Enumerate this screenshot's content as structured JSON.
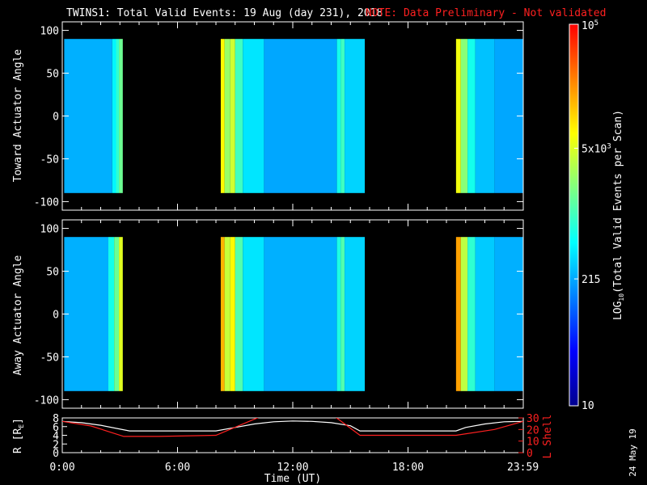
{
  "figure": {
    "title": "TWINS1: Total Valid Events: 19 Aug (day 231), 2018",
    "note": "NOTE: Data Preliminary - Not validated",
    "stamp": "24 May 19"
  },
  "colors": {
    "background": "#000000",
    "note_red": "#ff2020",
    "axis": "#ffffff",
    "colormap": [
      "#00008f",
      "#0000ff",
      "#0080ff",
      "#00ffff",
      "#80ff80",
      "#ffff00",
      "#ff8000",
      "#ff0000"
    ]
  },
  "chart_data": [
    {
      "type": "heatmap",
      "name": "toward",
      "ylabel": "Toward Actuator Angle",
      "xlim": [
        0,
        24
      ],
      "ylim": [
        -110,
        110
      ],
      "yticks": [
        -100,
        -50,
        0,
        50,
        100
      ],
      "data_range_deg": [
        -90,
        90
      ],
      "scan_windows_hours": [
        [
          0.1,
          3.15
        ],
        [
          8.25,
          15.75
        ],
        [
          20.5,
          24
        ]
      ],
      "vertical_features": [
        {
          "start_hour": 0.1,
          "value": 0.34
        },
        {
          "start_hour": 2.6,
          "value": 0.42
        },
        {
          "start_hour": 2.8,
          "value": 0.48
        },
        {
          "start_hour": 2.95,
          "value": 0.55
        },
        {
          "start_hour": 8.25,
          "value": 0.72
        },
        {
          "start_hour": 8.45,
          "value": 0.6
        },
        {
          "start_hour": 8.75,
          "value": 0.66
        },
        {
          "start_hour": 9.0,
          "value": 0.5
        },
        {
          "start_hour": 9.4,
          "value": 0.4
        },
        {
          "start_hour": 10.5,
          "value": 0.33
        },
        {
          "start_hour": 14.3,
          "value": 0.45
        },
        {
          "start_hour": 14.5,
          "value": 0.5
        },
        {
          "start_hour": 14.7,
          "value": 0.38
        },
        {
          "start_hour": 20.5,
          "value": 0.7
        },
        {
          "start_hour": 20.75,
          "value": 0.58
        },
        {
          "start_hour": 21.1,
          "value": 0.45
        },
        {
          "start_hour": 21.5,
          "value": 0.36
        },
        {
          "start_hour": 22.5,
          "value": 0.33
        }
      ]
    },
    {
      "type": "heatmap",
      "name": "away",
      "ylabel": "Away Actuator Angle",
      "xlim": [
        0,
        24
      ],
      "ylim": [
        -110,
        110
      ],
      "yticks": [
        -100,
        -50,
        0,
        50,
        100
      ],
      "data_range_deg": [
        -90,
        90
      ],
      "scan_windows_hours": [
        [
          0.1,
          3.15
        ],
        [
          8.25,
          15.75
        ],
        [
          20.5,
          24
        ]
      ],
      "vertical_features": [
        {
          "start_hour": 0.1,
          "value": 0.34
        },
        {
          "start_hour": 2.4,
          "value": 0.45
        },
        {
          "start_hour": 2.7,
          "value": 0.55
        },
        {
          "start_hour": 2.95,
          "value": 0.68
        },
        {
          "start_hour": 8.25,
          "value": 0.8
        },
        {
          "start_hour": 8.45,
          "value": 0.65
        },
        {
          "start_hour": 8.75,
          "value": 0.72
        },
        {
          "start_hour": 9.0,
          "value": 0.52
        },
        {
          "start_hour": 9.4,
          "value": 0.4
        },
        {
          "start_hour": 10.5,
          "value": 0.34
        },
        {
          "start_hour": 14.3,
          "value": 0.46
        },
        {
          "start_hour": 14.5,
          "value": 0.52
        },
        {
          "start_hour": 14.7,
          "value": 0.38
        },
        {
          "start_hour": 20.5,
          "value": 0.82
        },
        {
          "start_hour": 20.75,
          "value": 0.64
        },
        {
          "start_hour": 21.1,
          "value": 0.48
        },
        {
          "start_hour": 21.5,
          "value": 0.37
        },
        {
          "start_hour": 22.5,
          "value": 0.34
        }
      ]
    },
    {
      "type": "line",
      "name": "orbit",
      "ylabel": "R [R",
      "ylabel_sub": "E",
      "ylabel_end": "]",
      "y2label": "L Shell",
      "xlabel": "Time (UT)",
      "xlim": [
        0,
        24
      ],
      "ylim": [
        0,
        8
      ],
      "yticks": [
        0,
        2,
        4,
        6,
        8
      ],
      "y2lim": [
        0,
        30
      ],
      "y2ticks": [
        0,
        10,
        20,
        30
      ],
      "xtick_labels": [
        {
          "hour": 0,
          "label": "0:00"
        },
        {
          "hour": 6,
          "label": "6:00"
        },
        {
          "hour": 12,
          "label": "12:00"
        },
        {
          "hour": 18,
          "label": "18:00"
        },
        {
          "hour": 23.983,
          "label": "23:59"
        }
      ],
      "series": [
        {
          "color": "#ffffff",
          "x": [
            0,
            1,
            2,
            3.5,
            8,
            9,
            10,
            11,
            12,
            13,
            14,
            15,
            15.5,
            20.5,
            21,
            22,
            23,
            24
          ],
          "y": [
            7.2,
            6.9,
            6.3,
            5.0,
            5.0,
            5.8,
            6.6,
            7.1,
            7.3,
            7.2,
            6.9,
            6.2,
            5.0,
            5.0,
            5.8,
            6.6,
            7.1,
            7.2
          ]
        },
        {
          "axis": "right",
          "color": "#ff2020",
          "x": [
            0,
            1.5,
            3.2,
            5,
            8,
            10.3,
            10.5,
            13.5,
            14.2,
            15.5,
            16,
            18,
            20.5,
            22.5,
            24
          ],
          "y": [
            27,
            23,
            14,
            14,
            15,
            31,
            31,
            31,
            31,
            15,
            15,
            15,
            15,
            20,
            27
          ]
        }
      ]
    }
  ],
  "colorbar": {
    "label": "LOG",
    "label_sub": "10",
    "label_end": "(Total Valid Events per Scan)",
    "log_range": [
      1,
      5
    ],
    "ticks": [
      {
        "text": "10",
        "exp": "",
        "log": 1
      },
      {
        "text": "215",
        "exp": "",
        "log": 2.33
      },
      {
        "text": "5x10",
        "exp": "3",
        "log": 3.7
      },
      {
        "text": "10",
        "exp": "5",
        "log": 5
      }
    ]
  }
}
